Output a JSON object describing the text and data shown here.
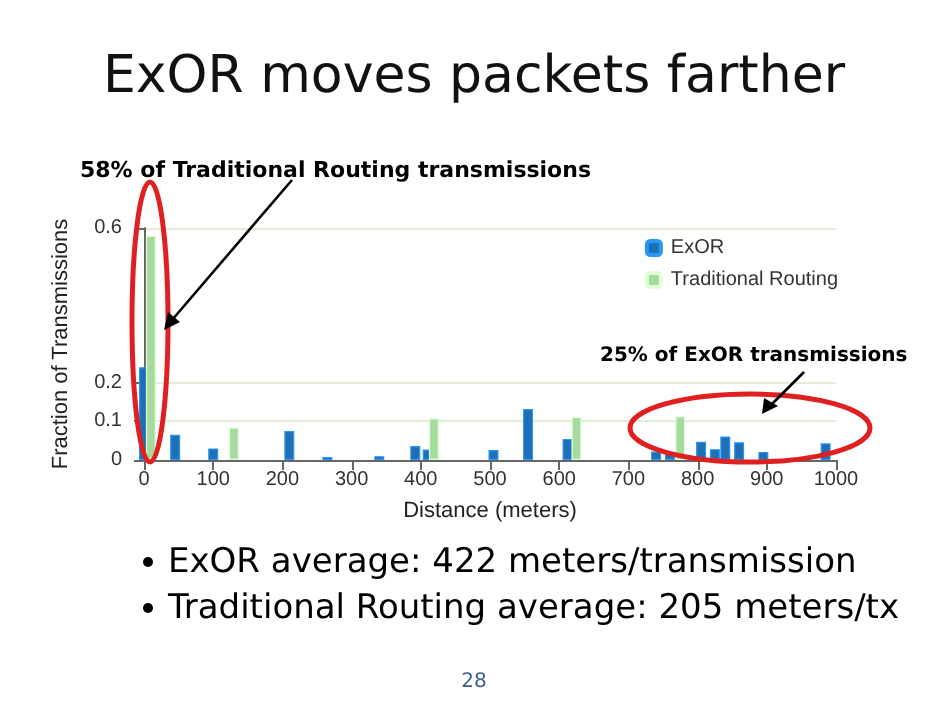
{
  "chart_data": {
    "type": "bar",
    "title": "ExOR moves packets farther",
    "xlabel": "Distance (meters)",
    "ylabel": "Fraction of Transmissions",
    "series": [
      {
        "name": "ExOR",
        "color": "#1f6fb5",
        "x": [
          0,
          45,
          100,
          210,
          265,
          340,
          392,
          410,
          505,
          555,
          612,
          740,
          760,
          805,
          825,
          840,
          860,
          895,
          985
        ],
        "values": [
          0.24,
          0.065,
          0.03,
          0.075,
          0.008,
          0.01,
          0.036,
          0.027,
          0.026,
          0.132,
          0.054,
          0.022,
          0.018,
          0.047,
          0.028,
          0.061,
          0.046,
          0.021,
          0.043
        ]
      },
      {
        "name": "Traditional Routing",
        "color": "#a6dba0",
        "x": [
          10,
          130,
          419,
          625,
          775
        ],
        "values": [
          0.58,
          0.084,
          0.108,
          0.111,
          0.113
        ]
      }
    ],
    "xlim": [
      0,
      1000
    ],
    "xticks": [
      0,
      100,
      200,
      300,
      400,
      500,
      600,
      700,
      800,
      900,
      1000
    ],
    "ylim": [
      0,
      0.6
    ],
    "yticks": [
      0,
      0.1,
      0.2,
      0.6
    ],
    "grid": "y",
    "legend": "top right",
    "annotations": [
      "58% of Traditional Routing transmissions",
      "25% of ExOR transmissions",
      "ExOR average: 422 meters/transmission",
      "Traditional Routing average: 205 meters/tx",
      "28"
    ]
  }
}
